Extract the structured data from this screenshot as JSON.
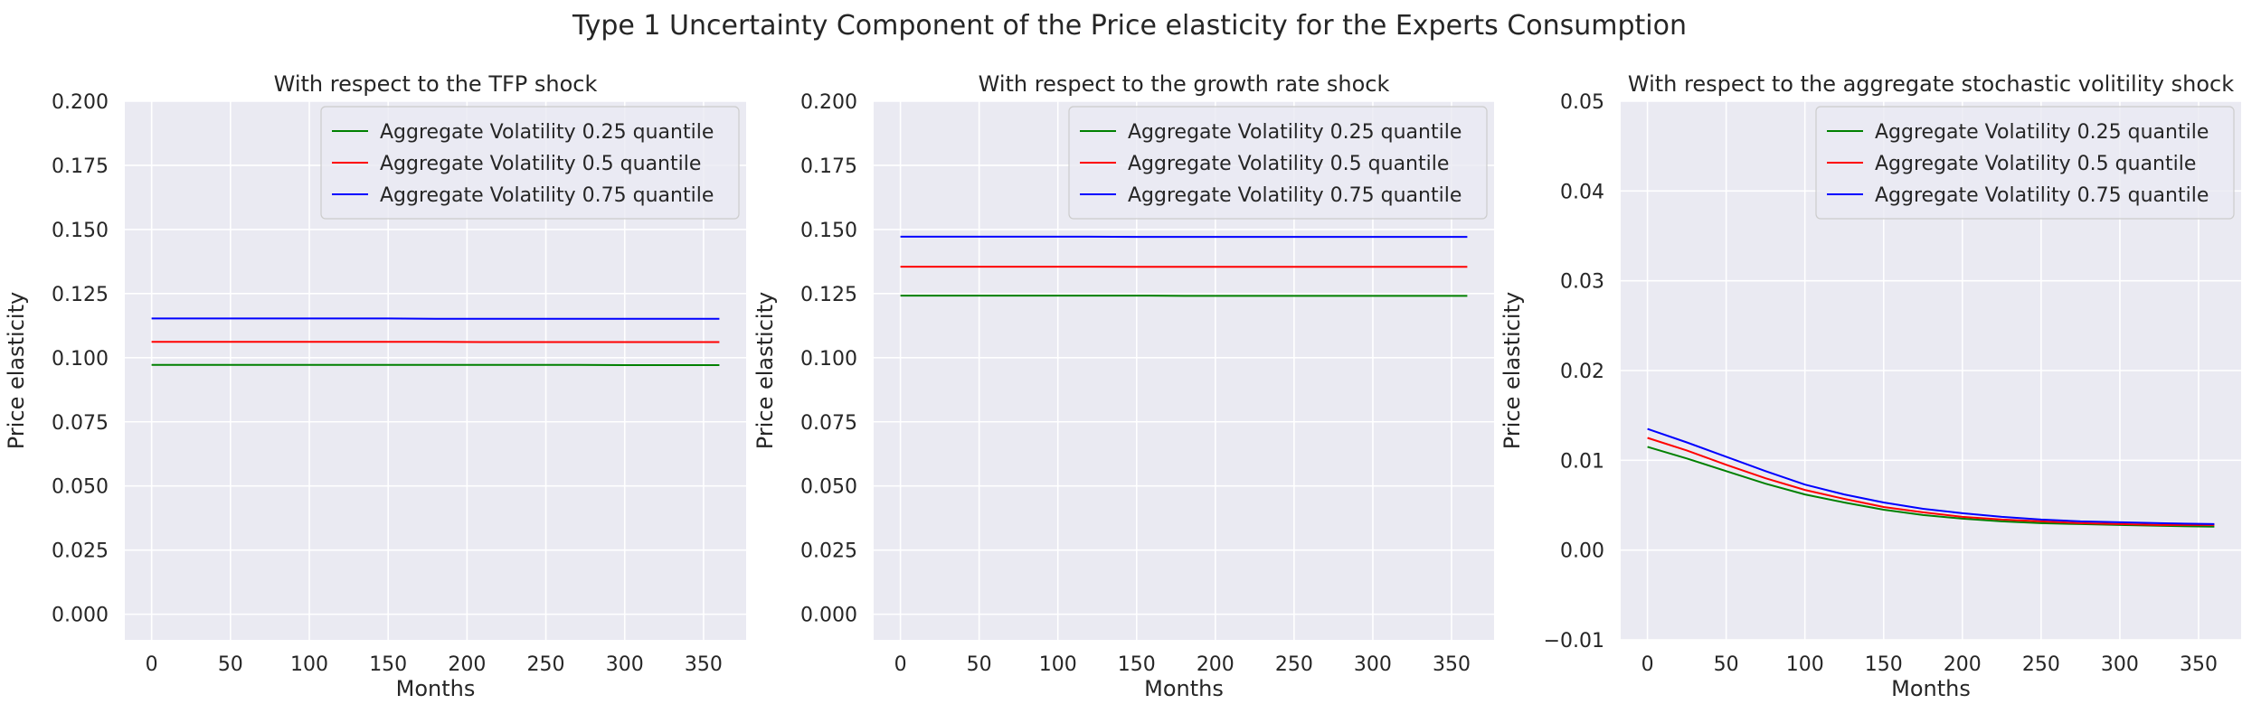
{
  "figure": {
    "suptitle": "Type 1 Uncertainty Component of the Price elasticity for the Experts Consumption",
    "background": "#ffffff",
    "axes_background": "#eaeaf2",
    "grid_color": "#ffffff"
  },
  "chart_data": [
    {
      "type": "line",
      "title": "With respect to the TFP shock",
      "xlabel": "Months",
      "ylabel": "Price elasticity",
      "xlim": [
        -17,
        377
      ],
      "ylim": [
        -0.01,
        0.2
      ],
      "xticks": [
        0,
        50,
        100,
        150,
        200,
        250,
        300,
        350
      ],
      "xtick_labels": [
        "0",
        "50",
        "100",
        "150",
        "200",
        "250",
        "300",
        "350"
      ],
      "yticks": [
        0.0,
        0.025,
        0.05,
        0.075,
        0.1,
        0.125,
        0.15,
        0.175,
        0.2
      ],
      "ytick_labels": [
        "0.000",
        "0.025",
        "0.050",
        "0.075",
        "0.100",
        "0.125",
        "0.150",
        "0.175",
        "0.200"
      ],
      "grid": true,
      "legend_position": "top-right",
      "x": [
        0,
        30,
        60,
        90,
        120,
        150,
        180,
        210,
        240,
        270,
        300,
        330,
        360
      ],
      "series": [
        {
          "name": "Aggregate Volatility 0.25 quantile",
          "color": "#008000",
          "values": [
            0.0972,
            0.0972,
            0.0972,
            0.0972,
            0.0972,
            0.0972,
            0.0972,
            0.0972,
            0.0972,
            0.0972,
            0.0971,
            0.0971,
            0.0971
          ]
        },
        {
          "name": "Aggregate Volatility 0.5 quantile",
          "color": "#ff0000",
          "values": [
            0.1062,
            0.1062,
            0.1062,
            0.1062,
            0.1062,
            0.1062,
            0.1062,
            0.1061,
            0.1061,
            0.1061,
            0.1061,
            0.1061,
            0.1061
          ]
        },
        {
          "name": "Aggregate Volatility 0.75 quantile",
          "color": "#0000ff",
          "values": [
            0.1153,
            0.1153,
            0.1153,
            0.1153,
            0.1153,
            0.1153,
            0.1152,
            0.1152,
            0.1152,
            0.1152,
            0.1152,
            0.1152,
            0.1152
          ]
        }
      ]
    },
    {
      "type": "line",
      "title": "With respect to the growth rate shock",
      "xlabel": "Months",
      "ylabel": "Price elasticity",
      "xlim": [
        -17,
        377
      ],
      "ylim": [
        -0.01,
        0.2
      ],
      "xticks": [
        0,
        50,
        100,
        150,
        200,
        250,
        300,
        350
      ],
      "xtick_labels": [
        "0",
        "50",
        "100",
        "150",
        "200",
        "250",
        "300",
        "350"
      ],
      "yticks": [
        0.0,
        0.025,
        0.05,
        0.075,
        0.1,
        0.125,
        0.15,
        0.175,
        0.2
      ],
      "ytick_labels": [
        "0.000",
        "0.025",
        "0.050",
        "0.075",
        "0.100",
        "0.125",
        "0.150",
        "0.175",
        "0.200"
      ],
      "grid": true,
      "legend_position": "top-right",
      "x": [
        0,
        30,
        60,
        90,
        120,
        150,
        180,
        210,
        240,
        270,
        300,
        330,
        360
      ],
      "series": [
        {
          "name": "Aggregate Volatility 0.25 quantile",
          "color": "#008000",
          "values": [
            0.1242,
            0.1242,
            0.1242,
            0.1242,
            0.1242,
            0.1242,
            0.1241,
            0.1241,
            0.1241,
            0.1241,
            0.1241,
            0.1241,
            0.1241
          ]
        },
        {
          "name": "Aggregate Volatility 0.5 quantile",
          "color": "#ff0000",
          "values": [
            0.1355,
            0.1355,
            0.1355,
            0.1355,
            0.1355,
            0.1354,
            0.1354,
            0.1354,
            0.1354,
            0.1354,
            0.1354,
            0.1354,
            0.1354
          ]
        },
        {
          "name": "Aggregate Volatility 0.75 quantile",
          "color": "#0000ff",
          "values": [
            0.1472,
            0.1472,
            0.1472,
            0.1472,
            0.1472,
            0.1471,
            0.1471,
            0.1471,
            0.1471,
            0.1471,
            0.1471,
            0.1471,
            0.1471
          ]
        }
      ]
    },
    {
      "type": "line",
      "title": "With respect to the aggregate stochastic volitility shock",
      "xlabel": "Months",
      "ylabel": "Price elasticity",
      "xlim": [
        -17,
        377
      ],
      "ylim": [
        -0.01,
        0.05
      ],
      "xticks": [
        0,
        50,
        100,
        150,
        200,
        250,
        300,
        350
      ],
      "xtick_labels": [
        "0",
        "50",
        "100",
        "150",
        "200",
        "250",
        "300",
        "350"
      ],
      "yticks": [
        -0.01,
        0.0,
        0.01,
        0.02,
        0.03,
        0.04,
        0.05
      ],
      "ytick_labels": [
        "−0.01",
        "0.00",
        "0.01",
        "0.02",
        "0.03",
        "0.04",
        "0.05"
      ],
      "grid": true,
      "legend_position": "top-right",
      "x": [
        0,
        25,
        50,
        75,
        100,
        125,
        150,
        175,
        200,
        225,
        250,
        275,
        300,
        325,
        360
      ],
      "series": [
        {
          "name": "Aggregate Volatility 0.25 quantile",
          "color": "#008000",
          "values": [
            0.0115,
            0.0102,
            0.0088,
            0.0074,
            0.0062,
            0.0053,
            0.0045,
            0.0039,
            0.0035,
            0.0032,
            0.003,
            0.0029,
            0.0028,
            0.0027,
            0.0026
          ]
        },
        {
          "name": "Aggregate Volatility 0.5 quantile",
          "color": "#ff0000",
          "values": [
            0.0125,
            0.0111,
            0.0095,
            0.008,
            0.0067,
            0.0057,
            0.0048,
            0.0042,
            0.0037,
            0.0034,
            0.0032,
            0.003,
            0.0029,
            0.0028,
            0.0028
          ]
        },
        {
          "name": "Aggregate Volatility 0.75 quantile",
          "color": "#0000ff",
          "values": [
            0.0135,
            0.012,
            0.0104,
            0.0088,
            0.0073,
            0.0062,
            0.0053,
            0.0046,
            0.0041,
            0.0037,
            0.0034,
            0.0032,
            0.0031,
            0.003,
            0.0029
          ]
        }
      ]
    }
  ]
}
